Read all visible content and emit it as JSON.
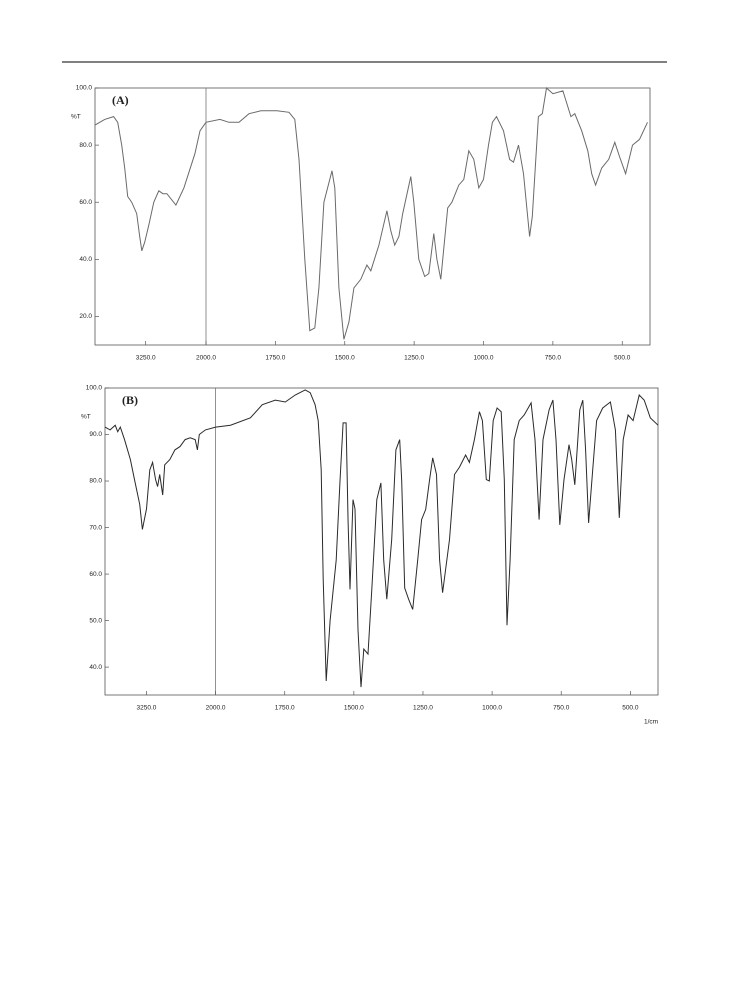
{
  "chart_data": [
    {
      "type": "line",
      "label": "(A)",
      "y_label": "%T",
      "color": "#6a6a6a",
      "xlim": [
        4300,
        400
      ],
      "xbreak": 2000,
      "ylim": [
        10,
        100
      ],
      "xticks": [
        {
          "value": 3250,
          "label": "3250.0"
        },
        {
          "value": 2000,
          "label": "2000.0"
        },
        {
          "value": 1750,
          "label": "1750.0"
        },
        {
          "value": 1500,
          "label": "1500.0"
        },
        {
          "value": 1250,
          "label": "1250.0"
        },
        {
          "value": 1000,
          "label": "1000.0"
        },
        {
          "value": 750,
          "label": "750.0"
        },
        {
          "value": 500,
          "label": "500.0"
        }
      ],
      "yticks": [
        {
          "value": 100,
          "label": "100.0"
        },
        {
          "value": 80,
          "label": "80.0"
        },
        {
          "value": 60,
          "label": "60.0"
        },
        {
          "value": 40,
          "label": "40.0"
        },
        {
          "value": 20,
          "label": "20.0"
        }
      ],
      "x": [
        4300,
        4100,
        3914,
        3830,
        3747,
        3685,
        3622,
        3540,
        3435,
        3373,
        3331,
        3270,
        3186,
        3082,
        2978,
        2894,
        2811,
        2624,
        2540,
        2458,
        2229,
        2125,
        2000,
        1950,
        1917,
        1881,
        1845,
        1802,
        1744,
        1701,
        1680,
        1665,
        1644,
        1626,
        1608,
        1593,
        1575,
        1546,
        1536,
        1521,
        1503,
        1485,
        1467,
        1442,
        1420,
        1406,
        1377,
        1348,
        1334,
        1320,
        1305,
        1291,
        1262,
        1251,
        1233,
        1212,
        1197,
        1179,
        1168,
        1154,
        1129,
        1114,
        1089,
        1071,
        1053,
        1035,
        1017,
        1000,
        982,
        968,
        953,
        928,
        906,
        892,
        874,
        856,
        834,
        824,
        802,
        788,
        773,
        750,
        714,
        685,
        671,
        646,
        624,
        610,
        596,
        574,
        549,
        527,
        510,
        488,
        463,
        438,
        409
      ],
      "values": [
        87,
        89,
        90,
        88,
        80,
        72,
        62,
        60,
        56,
        48,
        43,
        46,
        52,
        60,
        64,
        63,
        63,
        59,
        62,
        65,
        77,
        85,
        88,
        89,
        88,
        88,
        91,
        92,
        92,
        91.5,
        89,
        75,
        40,
        15,
        16,
        30,
        60,
        71,
        65,
        30,
        12,
        18,
        30,
        33,
        38,
        36,
        45,
        57,
        50,
        45,
        48,
        56,
        69,
        60,
        40,
        34,
        35,
        49,
        40,
        33,
        58,
        60,
        66,
        68,
        78,
        75,
        65,
        68,
        80,
        88,
        90,
        85,
        75,
        74,
        80,
        70,
        48,
        55,
        90,
        91,
        100,
        98,
        99,
        90,
        91,
        85,
        78,
        70,
        66,
        72,
        75,
        81,
        76,
        70,
        80,
        82,
        88
      ]
    },
    {
      "type": "line",
      "label": "(B)",
      "y_label": "%T",
      "x_label": "1/cm",
      "color": "#2a2a2a",
      "xlim": [
        4000,
        400
      ],
      "xbreak": 2000,
      "ylim": [
        34,
        100
      ],
      "xticks": [
        {
          "value": 3250,
          "label": "3250.0"
        },
        {
          "value": 2000,
          "label": "2000.0"
        },
        {
          "value": 1750,
          "label": "1750.0"
        },
        {
          "value": 1500,
          "label": "1500.0"
        },
        {
          "value": 1250,
          "label": "1250.0"
        },
        {
          "value": 1000,
          "label": "1000.0"
        },
        {
          "value": 750,
          "label": "750.0"
        },
        {
          "value": 500,
          "label": "500.0"
        }
      ],
      "yticks": [
        {
          "value": 100,
          "label": "100.0"
        },
        {
          "value": 90,
          "label": "90.0"
        },
        {
          "value": 80,
          "label": "80.0"
        },
        {
          "value": 70,
          "label": "70.0"
        },
        {
          "value": 60,
          "label": "60.0"
        },
        {
          "value": 50,
          "label": "50.0"
        },
        {
          "value": 40,
          "label": "40.0"
        }
      ],
      "x": [
        4000,
        3908,
        3816,
        3770,
        3724,
        3650,
        3540,
        3466,
        3373,
        3324,
        3250,
        3190,
        3140,
        3085,
        3048,
        3010,
        2957,
        2920,
        2828,
        2736,
        2644,
        2552,
        2460,
        2368,
        2330,
        2294,
        2184,
        2000,
        1946,
        1874,
        1831,
        1784,
        1748,
        1712,
        1676,
        1658,
        1640,
        1629,
        1618,
        1611,
        1600,
        1586,
        1564,
        1550,
        1539,
        1528,
        1521,
        1514,
        1503,
        1496,
        1485,
        1474,
        1464,
        1449,
        1435,
        1417,
        1402,
        1392,
        1381,
        1363,
        1348,
        1334,
        1327,
        1316,
        1302,
        1287,
        1269,
        1255,
        1240,
        1226,
        1215,
        1201,
        1190,
        1179,
        1154,
        1136,
        1118,
        1096,
        1082,
        1064,
        1046,
        1035,
        1021,
        1010,
        996,
        982,
        967,
        956,
        946,
        935,
        920,
        902,
        884,
        859,
        845,
        830,
        816,
        794,
        780,
        769,
        755,
        740,
        722,
        712,
        701,
        683,
        672,
        662,
        651,
        636,
        622,
        600,
        572,
        554,
        540,
        526,
        508,
        490,
        468,
        450,
        428,
        400
      ],
      "values": [
        91.6,
        91,
        92,
        90.6,
        91.6,
        89,
        84.6,
        80.3,
        75,
        69.6,
        74,
        82.4,
        84,
        80.3,
        78.8,
        81.4,
        77,
        83.5,
        84.6,
        86.7,
        87.4,
        88.9,
        89.3,
        88.9,
        86.7,
        90,
        91,
        91.6,
        92,
        93.6,
        96.4,
        97.4,
        97,
        98.5,
        99.6,
        99,
        96.4,
        93,
        82.4,
        58.9,
        37,
        50,
        63,
        80,
        92.5,
        92.5,
        72,
        56.7,
        76,
        74,
        48,
        35.7,
        43.9,
        42.8,
        56.7,
        76,
        79.6,
        63,
        54.6,
        67.4,
        86.7,
        88.9,
        80,
        57,
        54.6,
        52.4,
        63,
        71.7,
        73.9,
        80.3,
        85,
        81.4,
        63,
        56,
        67.4,
        81.4,
        83,
        85.6,
        84,
        88.9,
        94.9,
        93,
        80.3,
        80,
        93,
        95.7,
        94.9,
        80.3,
        49,
        63,
        88.9,
        93,
        94.2,
        96.8,
        88.9,
        71.7,
        88.9,
        95.3,
        97.4,
        88.9,
        70.6,
        80.3,
        87.8,
        84.6,
        79.2,
        95.3,
        97.4,
        86.7,
        71,
        82.4,
        93,
        95.7,
        97,
        91,
        72.1,
        88.9,
        94.2,
        93,
        98.5,
        97.4,
        93.6,
        92
      ]
    }
  ]
}
